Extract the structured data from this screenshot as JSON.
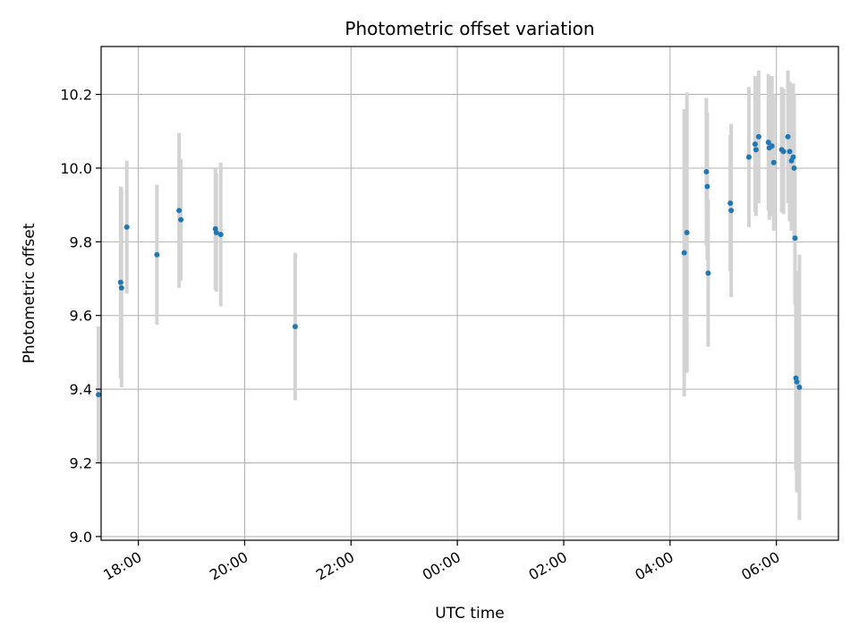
{
  "chart_data": {
    "type": "scatter",
    "title": "Photometric offset variation",
    "xlabel": "UTC time",
    "ylabel": "Photometric offset",
    "x_unit": "UTC time",
    "x_ticks": [
      "18:00",
      "20:00",
      "22:00",
      "00:00",
      "02:00",
      "04:00",
      "06:00"
    ],
    "y_ticks": [
      "9.0",
      "9.2",
      "9.4",
      "9.6",
      "9.8",
      "10.0",
      "10.2"
    ],
    "xlim": [
      "17:18",
      "07:10 (+1 day)"
    ],
    "ylim": [
      8.99,
      10.33
    ],
    "grid": true,
    "colors": {
      "point": "#1f77b4",
      "errorbar": "#d3d3d3",
      "grid": "#b0b0b0"
    },
    "points": [
      {
        "x": "17:15",
        "y": 9.385,
        "yerr": 0.185
      },
      {
        "x": "17:40",
        "y": 9.69,
        "yerr": 0.26
      },
      {
        "x": "17:41",
        "y": 9.675,
        "yerr": 0.27
      },
      {
        "x": "17:47",
        "y": 9.84,
        "yerr": 0.18
      },
      {
        "x": "18:21",
        "y": 9.765,
        "yerr": 0.19
      },
      {
        "x": "18:46",
        "y": 9.885,
        "yerr": 0.21
      },
      {
        "x": "18:48",
        "y": 9.86,
        "yerr": 0.165
      },
      {
        "x": "19:27",
        "y": 9.835,
        "yerr": 0.165
      },
      {
        "x": "19:28",
        "y": 9.825,
        "yerr": 0.16
      },
      {
        "x": "19:33",
        "y": 9.82,
        "yerr": 0.195
      },
      {
        "x": "20:57",
        "y": 9.57,
        "yerr": 0.2
      },
      {
        "x": "04:16",
        "y": 9.77,
        "yerr": 0.39
      },
      {
        "x": "04:19",
        "y": 9.825,
        "yerr": 0.38
      },
      {
        "x": "04:41",
        "y": 9.99,
        "yerr": 0.2
      },
      {
        "x": "04:42",
        "y": 9.95,
        "yerr": 0.2
      },
      {
        "x": "04:43",
        "y": 9.715,
        "yerr": 0.2
      },
      {
        "x": "05:08",
        "y": 9.905,
        "yerr": 0.185
      },
      {
        "x": "05:09",
        "y": 9.885,
        "yerr": 0.235
      },
      {
        "x": "05:29",
        "y": 10.03,
        "yerr": 0.19
      },
      {
        "x": "05:36",
        "y": 10.065,
        "yerr": 0.185
      },
      {
        "x": "05:37",
        "y": 10.05,
        "yerr": 0.18
      },
      {
        "x": "05:40",
        "y": 10.085,
        "yerr": 0.18
      },
      {
        "x": "05:51",
        "y": 10.07,
        "yerr": 0.185
      },
      {
        "x": "05:52",
        "y": 10.055,
        "yerr": 0.195
      },
      {
        "x": "05:55",
        "y": 10.06,
        "yerr": 0.19
      },
      {
        "x": "05:57",
        "y": 10.015,
        "yerr": 0.185
      },
      {
        "x": "06:06",
        "y": 10.05,
        "yerr": 0.17
      },
      {
        "x": "06:08",
        "y": 10.045,
        "yerr": 0.17
      },
      {
        "x": "06:13",
        "y": 10.085,
        "yerr": 0.18
      },
      {
        "x": "06:15",
        "y": 10.045,
        "yerr": 0.19
      },
      {
        "x": "06:17",
        "y": 10.02,
        "yerr": 0.19
      },
      {
        "x": "06:19",
        "y": 10.03,
        "yerr": 0.2
      },
      {
        "x": "06:20",
        "y": 10.0,
        "yerr": 0.2
      },
      {
        "x": "06:21",
        "y": 9.81,
        "yerr": 0.18
      },
      {
        "x": "06:22",
        "y": 9.43,
        "yerr": 0.25
      },
      {
        "x": "06:23",
        "y": 9.42,
        "yerr": 0.3
      },
      {
        "x": "06:26",
        "y": 9.405,
        "yerr": 0.36
      }
    ]
  }
}
